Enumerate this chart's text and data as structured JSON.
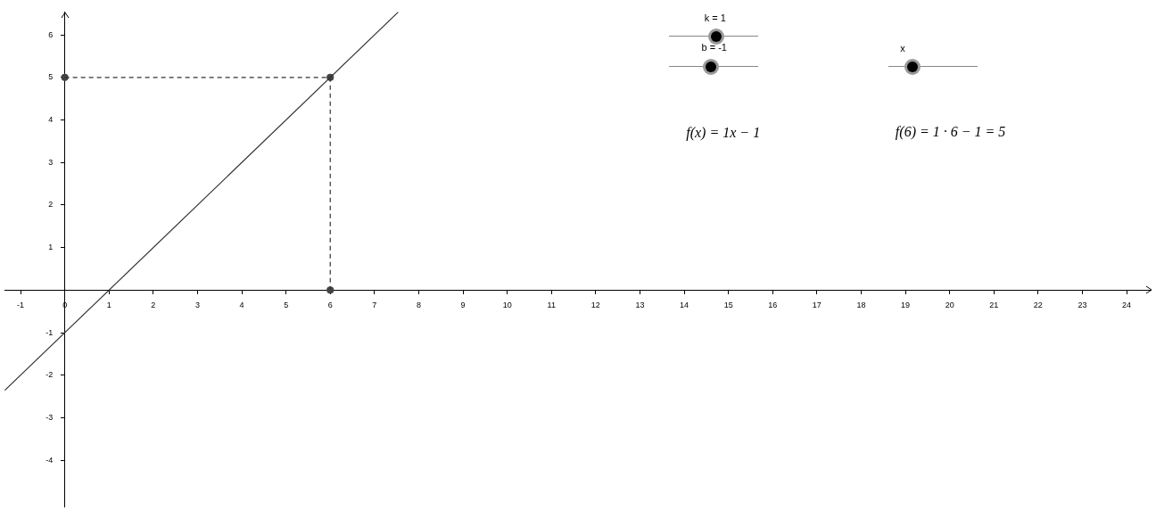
{
  "chart_data": {
    "type": "line",
    "xlim": [
      -1.36,
      24.56
    ],
    "ylim": [
      -5.1,
      6.54
    ],
    "xticks": [
      -1,
      0,
      1,
      2,
      3,
      4,
      5,
      6,
      7,
      8,
      9,
      10,
      11,
      12,
      13,
      14,
      15,
      16,
      17,
      18,
      19,
      20,
      21,
      22,
      23,
      24
    ],
    "yticks": [
      -4,
      -3,
      -2,
      -1,
      1,
      2,
      3,
      4,
      5,
      6
    ],
    "grid": false,
    "legend": false,
    "series": [
      {
        "color": "#333333",
        "marker": "none",
        "line_style": "solid",
        "x": [
          -1.36,
          7.54
        ],
        "values": [
          -2.36,
          6.54
        ]
      },
      {
        "color": "#333333",
        "marker": "none",
        "line_style": "dashed",
        "x": [
          0,
          6
        ],
        "values": [
          5,
          5
        ]
      },
      {
        "color": "#333333",
        "marker": "none",
        "line_style": "dashed",
        "x": [
          6,
          6
        ],
        "values": [
          5,
          0
        ]
      },
      {
        "type": "scatter",
        "color": "#444444",
        "marker": "circle",
        "x": [
          0,
          6,
          6
        ],
        "values": [
          5,
          5,
          0
        ]
      }
    ],
    "annotations": [
      "k = 1",
      "b = -1",
      "x",
      "f(x) = 1x − 1",
      "f(6) = 1 · 6 − 1 = 5"
    ]
  }
}
